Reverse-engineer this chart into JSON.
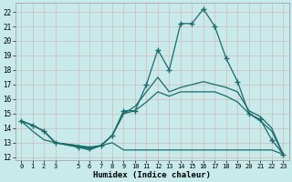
{
  "xlabel": "Humidex (Indice chaleur)",
  "x_ticks": [
    0,
    1,
    2,
    3,
    5,
    6,
    7,
    8,
    9,
    10,
    11,
    12,
    13,
    14,
    15,
    16,
    17,
    18,
    19,
    20,
    21,
    22,
    23
  ],
  "ylim": [
    11.8,
    22.6
  ],
  "xlim": [
    -0.5,
    23.5
  ],
  "yticks": [
    12,
    13,
    14,
    15,
    16,
    17,
    18,
    19,
    20,
    21,
    22
  ],
  "bg_color": "#c8eaea",
  "grid_color": "#d4b8b8",
  "line_color": "#1a6b6b",
  "line_main": {
    "x": [
      0,
      1,
      2,
      3,
      5,
      6,
      7,
      8,
      9,
      10,
      11,
      12,
      13,
      14,
      15,
      16,
      17,
      18,
      19,
      20,
      21,
      22,
      23
    ],
    "y": [
      14.5,
      14.2,
      13.8,
      13.0,
      12.7,
      12.6,
      12.8,
      13.5,
      15.2,
      15.2,
      17.0,
      19.4,
      18.0,
      21.2,
      21.2,
      22.2,
      21.0,
      18.8,
      17.2,
      15.0,
      14.6,
      13.2,
      12.2
    ]
  },
  "line_upper": {
    "x": [
      0,
      1,
      2,
      3,
      5,
      6,
      7,
      8,
      9,
      10,
      11,
      12,
      13,
      14,
      15,
      16,
      17,
      18,
      19,
      20,
      21,
      22,
      23
    ],
    "y": [
      14.5,
      14.2,
      13.8,
      13.0,
      12.7,
      12.5,
      12.8,
      13.5,
      15.0,
      15.5,
      16.5,
      17.5,
      16.5,
      16.8,
      17.0,
      17.2,
      17.0,
      16.8,
      16.5,
      15.2,
      14.8,
      14.0,
      12.2
    ]
  },
  "line_mid": {
    "x": [
      0,
      1,
      2,
      3,
      5,
      6,
      7,
      8,
      9,
      10,
      11,
      12,
      13,
      14,
      15,
      16,
      17,
      18,
      19,
      20,
      21,
      22,
      23
    ],
    "y": [
      14.5,
      14.2,
      13.8,
      13.0,
      12.8,
      12.7,
      12.8,
      13.5,
      15.0,
      15.2,
      15.8,
      16.5,
      16.2,
      16.5,
      16.5,
      16.5,
      16.5,
      16.2,
      15.8,
      15.0,
      14.5,
      13.8,
      12.2
    ]
  },
  "line_low": {
    "x": [
      0,
      1,
      2,
      3,
      5,
      6,
      7,
      8,
      9,
      10,
      11,
      12,
      13,
      14,
      15,
      16,
      17,
      18,
      19,
      20,
      21,
      22,
      23
    ],
    "y": [
      14.5,
      13.8,
      13.2,
      13.0,
      12.8,
      12.6,
      12.8,
      13.0,
      12.5,
      12.5,
      12.5,
      12.5,
      12.5,
      12.5,
      12.5,
      12.5,
      12.5,
      12.5,
      12.5,
      12.5,
      12.5,
      12.5,
      12.2
    ]
  }
}
